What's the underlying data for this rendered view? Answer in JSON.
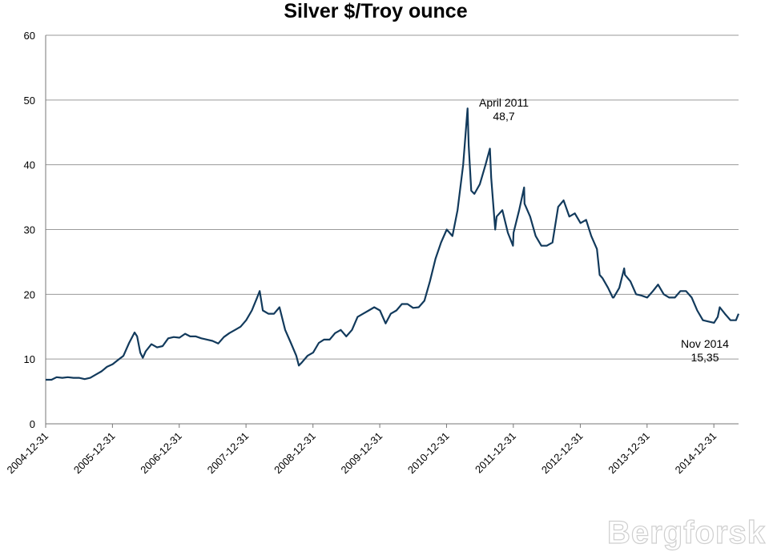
{
  "chart_data": {
    "type": "line",
    "title": "Silver $/Troy ounce",
    "xlabel": "",
    "ylabel": "",
    "ylim": [
      0,
      60
    ],
    "yticks": [
      0,
      10,
      20,
      30,
      40,
      50,
      60
    ],
    "xlim": [
      "2004-12-31",
      "2015-05-15"
    ],
    "xticks": [
      "2004-12-31",
      "2005-12-31",
      "2006-12-31",
      "2007-12-31",
      "2008-12-31",
      "2009-12-31",
      "2010-12-31",
      "2011-12-31",
      "2012-12-31",
      "2013-12-31",
      "2014-12-31"
    ],
    "grid": true,
    "line_color": "#123a5c",
    "series": [
      {
        "x": [
          "2004-12-31",
          "2005-02-01",
          "2005-03-01",
          "2005-04-01",
          "2005-05-01",
          "2005-06-01",
          "2005-07-01",
          "2005-08-01",
          "2005-09-01",
          "2005-10-01",
          "2005-11-01",
          "2005-12-01",
          "2006-01-01",
          "2006-02-01",
          "2006-03-01",
          "2006-04-01",
          "2006-05-01",
          "2006-05-15",
          "2006-06-01",
          "2006-06-15",
          "2006-07-01",
          "2006-08-01",
          "2006-09-01",
          "2006-10-01",
          "2006-11-01",
          "2006-12-01",
          "2007-01-01",
          "2007-02-01",
          "2007-03-01",
          "2007-04-01",
          "2007-05-01",
          "2007-06-01",
          "2007-07-01",
          "2007-08-01",
          "2007-09-01",
          "2007-10-01",
          "2007-11-01",
          "2007-12-01",
          "2008-01-01",
          "2008-02-01",
          "2008-03-01",
          "2008-03-15",
          "2008-04-01",
          "2008-05-01",
          "2008-06-01",
          "2008-07-01",
          "2008-08-01",
          "2008-09-01",
          "2008-10-01",
          "2008-10-15",
          "2008-11-01",
          "2008-12-01",
          "2009-01-01",
          "2009-02-01",
          "2009-03-01",
          "2009-04-01",
          "2009-05-01",
          "2009-06-01",
          "2009-07-01",
          "2009-08-01",
          "2009-09-01",
          "2009-10-01",
          "2009-11-01",
          "2009-12-01",
          "2010-01-01",
          "2010-02-01",
          "2010-03-01",
          "2010-04-01",
          "2010-05-01",
          "2010-06-01",
          "2010-07-01",
          "2010-08-01",
          "2010-09-01",
          "2010-10-01",
          "2010-11-01",
          "2010-12-01",
          "2011-01-01",
          "2011-02-01",
          "2011-03-01",
          "2011-04-01",
          "2011-04-25",
          "2011-05-01",
          "2011-05-15",
          "2011-06-01",
          "2011-07-01",
          "2011-08-01",
          "2011-08-25",
          "2011-09-01",
          "2011-09-23",
          "2011-10-01",
          "2011-11-01",
          "2011-12-01",
          "2011-12-29",
          "2012-01-01",
          "2012-02-01",
          "2012-02-28",
          "2012-03-01",
          "2012-04-01",
          "2012-05-01",
          "2012-06-01",
          "2012-07-01",
          "2012-08-01",
          "2012-09-01",
          "2012-10-01",
          "2012-11-01",
          "2012-12-01",
          "2013-01-01",
          "2013-02-01",
          "2013-03-01",
          "2013-04-01",
          "2013-04-16",
          "2013-05-01",
          "2013-06-01",
          "2013-06-26",
          "2013-07-01",
          "2013-08-01",
          "2013-08-28",
          "2013-09-01",
          "2013-10-01",
          "2013-11-01",
          "2013-12-01",
          "2014-01-01",
          "2014-02-01",
          "2014-03-01",
          "2014-04-01",
          "2014-05-01",
          "2014-06-01",
          "2014-07-01",
          "2014-08-01",
          "2014-09-01",
          "2014-10-01",
          "2014-11-01",
          "2014-12-01",
          "2015-01-01",
          "2015-01-21",
          "2015-02-01",
          "2015-03-01",
          "2015-04-01",
          "2015-05-01",
          "2015-05-15"
        ],
        "y": [
          6.8,
          6.8,
          7.2,
          7.1,
          7.2,
          7.1,
          7.1,
          6.9,
          7.1,
          7.6,
          8.1,
          8.8,
          9.2,
          9.9,
          10.5,
          12.5,
          14.1,
          13.5,
          11.0,
          10.2,
          11.2,
          12.3,
          11.8,
          12.0,
          13.2,
          13.4,
          13.3,
          13.9,
          13.5,
          13.5,
          13.2,
          13.0,
          12.8,
          12.4,
          13.4,
          14.0,
          14.5,
          15.0,
          16.0,
          17.5,
          19.5,
          20.5,
          17.5,
          17.0,
          17.0,
          18.0,
          14.5,
          12.5,
          10.5,
          9.0,
          9.5,
          10.5,
          11.0,
          12.5,
          13.0,
          13.0,
          14.0,
          14.5,
          13.5,
          14.5,
          16.5,
          17.0,
          17.5,
          18.0,
          17.5,
          15.5,
          17.0,
          17.5,
          18.5,
          18.5,
          17.9,
          18.0,
          19.0,
          22.0,
          25.5,
          28.0,
          30.0,
          29.0,
          33.0,
          40.0,
          48.7,
          43.0,
          36.0,
          35.5,
          37.0,
          40.0,
          42.5,
          38.0,
          30.0,
          32.0,
          33.0,
          29.5,
          27.5,
          29.5,
          33.0,
          36.5,
          34.0,
          32.0,
          29.0,
          27.5,
          27.5,
          28.0,
          33.5,
          34.5,
          32.0,
          32.5,
          31.0,
          31.5,
          29.0,
          27.0,
          23.0,
          22.5,
          21.0,
          19.5,
          19.5,
          21.0,
          24.0,
          23.0,
          22.0,
          20.0,
          19.8,
          19.5,
          20.5,
          21.5,
          20.0,
          19.5,
          19.5,
          20.5,
          20.5,
          19.5,
          17.5,
          16.0,
          15.8,
          15.6,
          16.5,
          18.0,
          17.0,
          16.0,
          16.0,
          17.0
        ]
      }
    ],
    "annotations": [
      {
        "line1": "April 2011",
        "line2": "48,7"
      },
      {
        "line1": "Nov 2014",
        "line2": "15,35"
      }
    ]
  },
  "watermark": "Bergforsk"
}
